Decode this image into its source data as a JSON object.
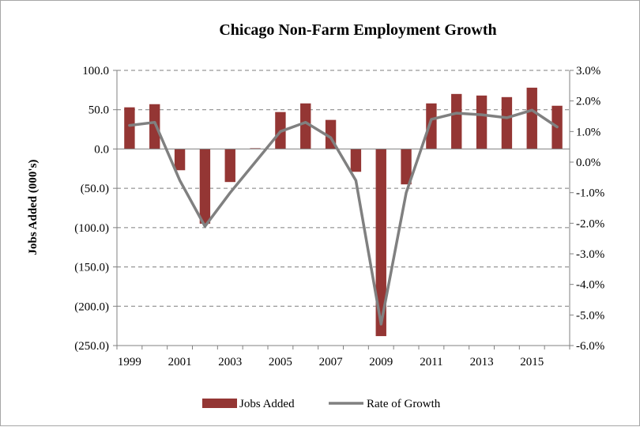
{
  "chart_data": {
    "type": "bar",
    "title": "Chicago Non-Farm Employment Growth",
    "ylabel": "Jobs Added (000's)",
    "y2label": "",
    "x_tick_labels": [
      "1999",
      "2001",
      "2003",
      "2005",
      "2007",
      "2009",
      "2011",
      "2013",
      "2015"
    ],
    "categories": [
      "1999",
      "2000",
      "2001",
      "2002",
      "2003",
      "2004",
      "2005",
      "2006",
      "2007",
      "2008",
      "2009",
      "2010",
      "2011",
      "2012",
      "2013",
      "2014",
      "2015",
      "2016"
    ],
    "ylim": [
      -250,
      100
    ],
    "y2lim": [
      -6.0,
      3.0
    ],
    "y_ticks": [
      100,
      50,
      0,
      -50,
      -100,
      -150,
      -200,
      -250
    ],
    "y_tick_labels": [
      "100.0",
      "50.0",
      "0.0",
      "(50.0)",
      "(100.0)",
      "(150.0)",
      "(200.0)",
      "(250.0)"
    ],
    "y2_ticks": [
      3,
      2,
      1,
      0,
      -1,
      -2,
      -3,
      -4,
      -5,
      -6
    ],
    "y2_tick_labels": [
      "3.0%",
      "2.0%",
      "1.0%",
      "0.0%",
      "-1.0%",
      "-2.0%",
      "-3.0%",
      "-4.0%",
      "-5.0%",
      "-6.0%"
    ],
    "grid": true,
    "legend_position": "bottom",
    "series": [
      {
        "name": "Jobs Added",
        "kind": "bar",
        "axis": "left",
        "color": "#943634",
        "values": [
          53,
          57,
          -27,
          -95,
          -42,
          1,
          47,
          58,
          37,
          -29,
          -238,
          -45,
          58,
          70,
          68,
          66,
          78,
          55
        ]
      },
      {
        "name": "Rate of Growth",
        "kind": "line",
        "axis": "right",
        "color": "#808080",
        "values": [
          1.2,
          1.3,
          -0.6,
          -2.1,
          -1.0,
          0.0,
          1.0,
          1.3,
          0.8,
          -0.6,
          -5.3,
          -1.0,
          1.4,
          1.6,
          1.55,
          1.45,
          1.7,
          1.15
        ]
      }
    ]
  }
}
